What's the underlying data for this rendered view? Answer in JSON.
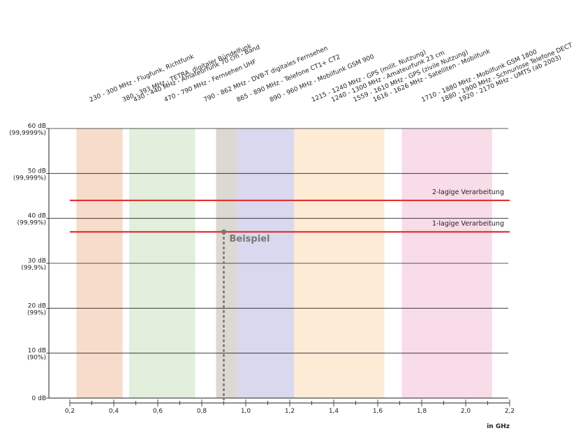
{
  "chart_data": {
    "type": "line",
    "x_unit": "in GHz",
    "xlim": [
      0.2,
      2.2
    ],
    "x_ticks": [
      {
        "value": 0.2,
        "label": "0,2"
      },
      {
        "value": 0.4,
        "label": "0,4"
      },
      {
        "value": 0.6,
        "label": "0,6"
      },
      {
        "value": 0.8,
        "label": "0,8"
      },
      {
        "value": 1.0,
        "label": "1,0"
      },
      {
        "value": 1.2,
        "label": "1,2"
      },
      {
        "value": 1.4,
        "label": "1,4"
      },
      {
        "value": 1.6,
        "label": "1,6"
      },
      {
        "value": 1.8,
        "label": "1,8"
      },
      {
        "value": 2.0,
        "label": "2,0"
      },
      {
        "value": 2.2,
        "label": "2,2"
      }
    ],
    "x_minor_step": 0.1,
    "ylim": [
      0,
      60
    ],
    "y_ticks": [
      {
        "value": 0,
        "db": "0 dB",
        "pct": ""
      },
      {
        "value": 10,
        "db": "10 dB",
        "pct": "(90%)"
      },
      {
        "value": 20,
        "db": "20 dB",
        "pct": "(99%)"
      },
      {
        "value": 30,
        "db": "30 dB",
        "pct": "(99,9%)"
      },
      {
        "value": 40,
        "db": "40 dB",
        "pct": "(99,99%)"
      },
      {
        "value": 50,
        "db": "50 dB",
        "pct": "(99,999%)"
      },
      {
        "value": 60,
        "db": "60 dB",
        "pct": "(99,9999%)"
      }
    ],
    "grid": true,
    "bands": [
      {
        "from": 0.23,
        "to": 0.44,
        "color": "#f8dccb"
      },
      {
        "from": 0.47,
        "to": 0.77,
        "color": "#e1efdc"
      },
      {
        "from": 0.865,
        "to": 0.96,
        "color": "#dcd8d2"
      },
      {
        "from": 0.96,
        "to": 1.22,
        "color": "#d9d8ee"
      },
      {
        "from": 1.22,
        "to": 1.63,
        "color": "#fdebd6"
      },
      {
        "from": 1.71,
        "to": 2.12,
        "color": "#f8dce8"
      }
    ],
    "series": [
      {
        "name": "2-lagige Verarbeitung",
        "y": 44,
        "x": [
          0.2,
          2.2
        ],
        "color": "#e23232"
      },
      {
        "name": "1-lagige Verarbeitung",
        "y": 37,
        "x": [
          0.2,
          2.2
        ],
        "color": "#e23232"
      }
    ],
    "example": {
      "label": "Beispiel",
      "x": 0.9,
      "y": 37,
      "color": "#777777"
    },
    "frequency_labels": [
      {
        "text": "230 - 300 MHz - Flugfunk, Richtfunk",
        "x": 0.23
      },
      {
        "text": "380 - 393 MHz - TETRA, digitaler Bündelfunk",
        "x": 0.38
      },
      {
        "text": "430 - 440 MHz - Amateurfunk 70 cm - Band",
        "x": 0.43
      },
      {
        "text": "470 - 790 MHz - Fernsehen UHF",
        "x": 0.57
      },
      {
        "text": "790 - 862 MHz - DVB-T digitales Fernsehen",
        "x": 0.75
      },
      {
        "text": "865 - 890 MHz - Telefone CT1+ CT2",
        "x": 0.9
      },
      {
        "text": "890 - 960 MHz - Mobilfunk GSM 900",
        "x": 1.05
      },
      {
        "text": "1215 - 1240 MHz - GPS (milit. Nutzung)",
        "x": 1.24
      },
      {
        "text": "1240 - 1300 MHz - Amateurfunk 23 cm",
        "x": 1.33
      },
      {
        "text": "1559 - 1610 MHz - GPS (zivile Nutzung)",
        "x": 1.43
      },
      {
        "text": "1616 - 1626 MHz - Satelliten - Mobilfunk",
        "x": 1.52
      },
      {
        "text": "1710 - 1880 MHz - Mobilfunk GSM 1800",
        "x": 1.74
      },
      {
        "text": "1880 - 1900 MHz - Schnurlose Telefone DECT",
        "x": 1.83
      },
      {
        "text": "1920 - 2170 MHz - UMTS (ab 2003)",
        "x": 1.91
      }
    ]
  }
}
